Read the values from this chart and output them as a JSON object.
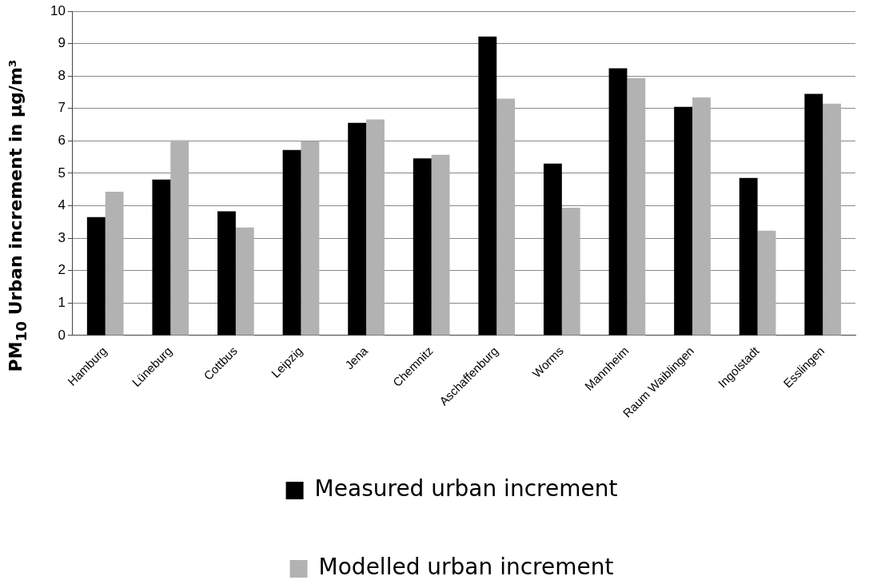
{
  "chart_data": {
    "type": "bar",
    "ylabel": "PM$_{10}$ Urban increment in µg/m³",
    "categories": [
      "Hamburg",
      "Lüneburg",
      "Cottbus",
      "Leipzig",
      "Jena",
      "Chemnitz",
      "Aschaffenburg",
      "Worms",
      "Mannheim",
      "Raum Waiblingen",
      "Ingolstadt",
      "Esslingen"
    ],
    "series": [
      {
        "name": "Measured urban increment",
        "color": "#000000",
        "values": [
          3.65,
          4.81,
          3.83,
          5.72,
          6.56,
          5.46,
          9.22,
          5.3,
          8.24,
          7.05,
          4.86,
          7.45
        ]
      },
      {
        "name": "Modelled urban increment",
        "color": "#b2b2b2",
        "values": [
          4.43,
          6.02,
          3.33,
          5.99,
          6.66,
          5.57,
          7.3,
          3.94,
          7.94,
          7.34,
          3.23,
          7.15
        ]
      }
    ],
    "ylim": [
      0,
      10
    ],
    "yticks": [
      0,
      1,
      2,
      3,
      4,
      5,
      6,
      7,
      8,
      9,
      10
    ],
    "grid": "y",
    "legend": "bottom"
  }
}
